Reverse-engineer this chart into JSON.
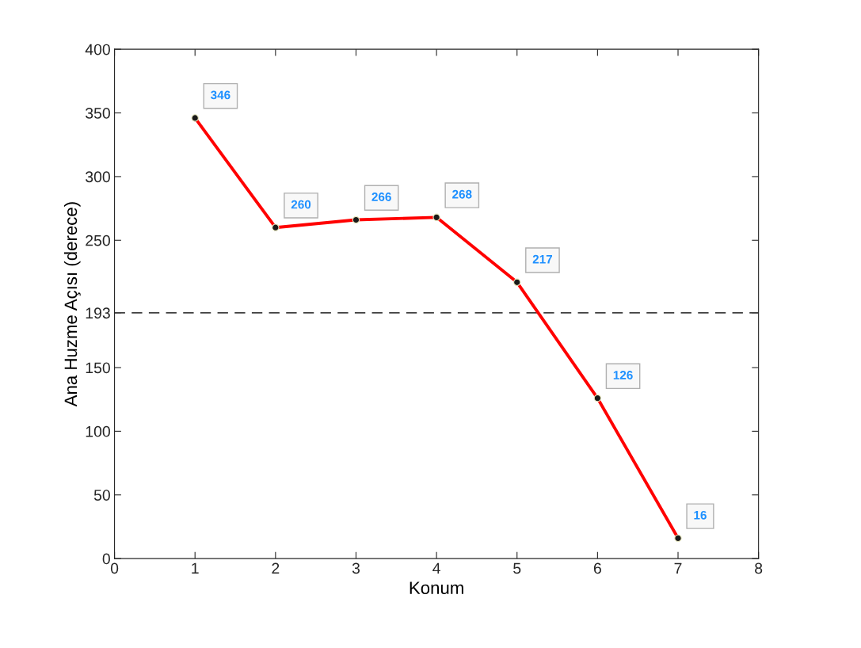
{
  "chart_data": {
    "type": "line",
    "xlabel": "Konum",
    "ylabel": "Ana Huzme Açısı (derece)",
    "x": [
      1,
      2,
      3,
      4,
      5,
      6,
      7
    ],
    "series": [
      {
        "color": "#ff0000",
        "values": [
          346,
          260,
          266,
          268,
          217,
          126,
          16
        ]
      }
    ],
    "xlim": [
      0,
      8
    ],
    "xticks": [
      0,
      1,
      2,
      3,
      4,
      5,
      6,
      7,
      8
    ],
    "ylim": [
      0,
      400
    ],
    "yticks": [
      0,
      50,
      100,
      150,
      193,
      250,
      300,
      350,
      400
    ],
    "ref_lines": [
      {
        "axis": "y",
        "value": 193,
        "color": "#404040",
        "line_style": "dashed"
      }
    ],
    "data_labels": true,
    "marker": "circle",
    "line_style": "solid",
    "grid": false
  }
}
